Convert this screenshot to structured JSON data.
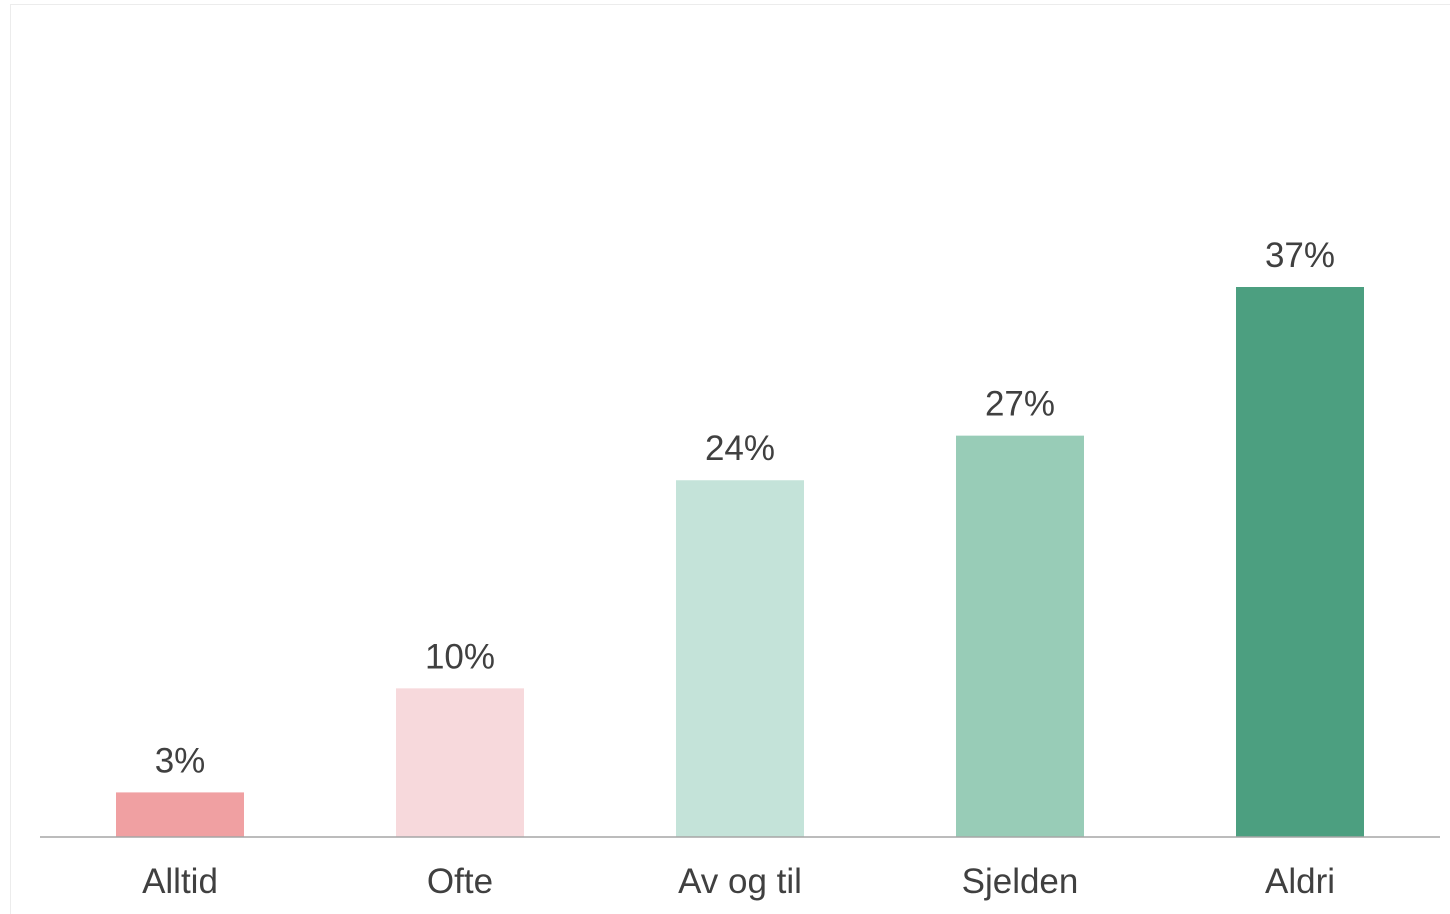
{
  "chart_data": {
    "type": "bar",
    "categories": [
      "Alltid",
      "Ofte",
      "Av og til",
      "Sjelden",
      "Aldri"
    ],
    "values": [
      3,
      10,
      24,
      27,
      37
    ],
    "data_labels": [
      "3%",
      "10%",
      "24%",
      "27%",
      "37%"
    ],
    "unit": "%",
    "title": "",
    "xlabel": "",
    "ylabel": "",
    "ylim": [
      0,
      37
    ],
    "grid": false,
    "legend": "none",
    "colors": [
      "#f0a0a2",
      "#f7d9dc",
      "#c4e3d9",
      "#98ccb7",
      "#4c9f80"
    ],
    "axis_color": "#a6a6a6",
    "text_color": "#404040"
  }
}
